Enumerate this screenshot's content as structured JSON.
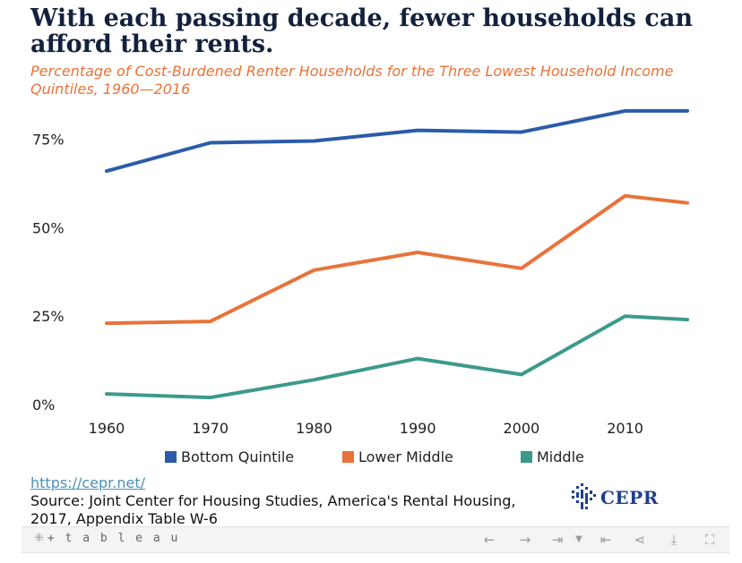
{
  "chart_data": {
    "type": "line",
    "title": "With each passing decade, fewer households can afford their rents.",
    "subtitle": "Percentage of Cost-Burdened Renter Households for the Three Lowest Household Income Quintiles, 1960—2016",
    "xlabel": "",
    "ylabel": "",
    "x": [
      1960,
      1970,
      1980,
      1990,
      2000,
      2010,
      2016
    ],
    "x_ticks": [
      "1960",
      "1970",
      "1980",
      "1990",
      "2000",
      "2010"
    ],
    "x_tick_values": [
      1960,
      1970,
      1980,
      1990,
      2000,
      2010
    ],
    "y_ticks": [
      "0%",
      "25%",
      "50%",
      "75%"
    ],
    "y_tick_values": [
      0,
      25,
      50,
      75
    ],
    "xlim": [
      1960,
      2016
    ],
    "ylim": [
      0,
      85
    ],
    "grid": false,
    "legend_position": "bottom",
    "series": [
      {
        "name": "Bottom Quintile",
        "color": "#2a5caa",
        "values": [
          66,
          74,
          74.5,
          77.5,
          77,
          83,
          83
        ]
      },
      {
        "name": "Lower Middle",
        "color": "#e8733a",
        "values": [
          23,
          23.5,
          38,
          43,
          38.5,
          59,
          57
        ]
      },
      {
        "name": "Middle",
        "color": "#3d9a8a",
        "values": [
          3,
          2,
          7,
          13,
          8.5,
          25,
          24
        ]
      }
    ]
  },
  "source": {
    "link": "https://cepr.net/",
    "text": "Source: Joint Center for Housing Studies, America's Rental Housing, 2017, Appendix Table W-6"
  },
  "logo": {
    "text": "CEPR",
    "color": "#1f3f8f"
  },
  "toolbar": {
    "brand": "+ t a b l e a u",
    "icons": [
      "undo-icon",
      "redo-icon",
      "revert-icon",
      "dropdown-icon",
      "first-icon",
      "share-icon",
      "download-icon",
      "fullscreen-icon"
    ]
  }
}
